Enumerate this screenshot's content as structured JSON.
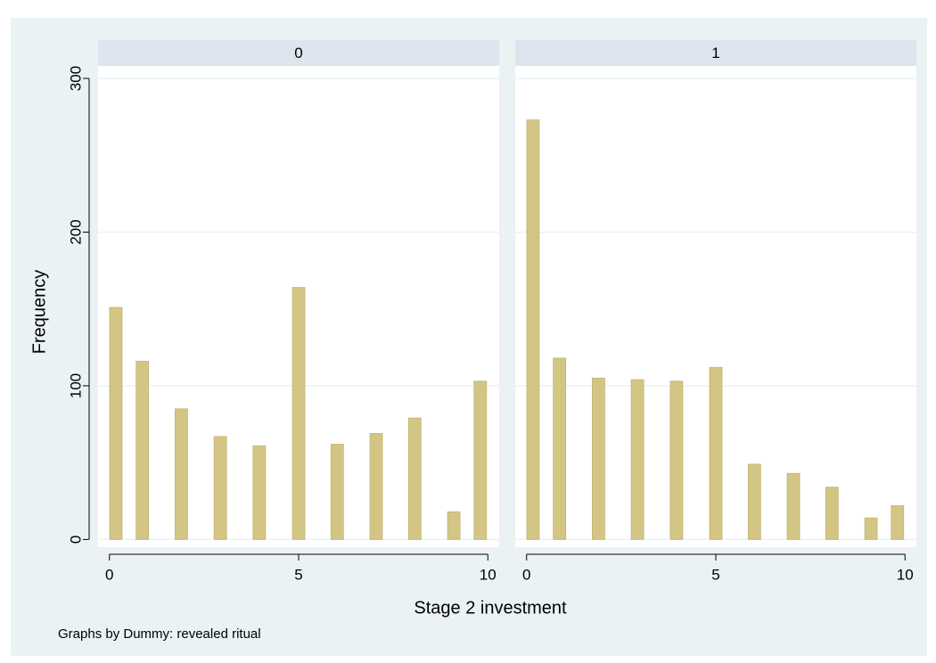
{
  "figure": {
    "ylabel": "Frequency",
    "xlabel": "Stage 2 investment",
    "note": "Graphs by Dummy: revealed ritual"
  },
  "chart_data": [
    {
      "type": "bar",
      "title": "0",
      "color": "#d3c584",
      "x": [
        0.17,
        0.87,
        1.9,
        2.93,
        3.96,
        5,
        6.02,
        7.05,
        8.07,
        9.1,
        9.8
      ],
      "values": [
        151,
        116,
        85,
        67,
        61,
        164,
        62,
        69,
        79,
        18,
        103
      ],
      "xlim": [
        -0.3,
        10.3
      ],
      "xticks": [
        0,
        5,
        10
      ],
      "ylim": [
        -5,
        300
      ],
      "yticks": [
        0,
        100,
        200,
        300
      ],
      "grid": true,
      "ytick_labels": true
    },
    {
      "type": "bar",
      "title": "1",
      "color": "#d3c584",
      "x": [
        0.17,
        0.87,
        1.9,
        2.93,
        3.96,
        5,
        6.02,
        7.05,
        8.07,
        9.1,
        9.8
      ],
      "values": [
        273,
        118,
        105,
        104,
        103,
        112,
        49,
        43,
        34,
        14,
        22
      ],
      "xlim": [
        -0.3,
        10.3
      ],
      "xticks": [
        0,
        5,
        10
      ],
      "ylim": [
        -5,
        300
      ],
      "yticks": [
        0,
        100,
        200,
        300
      ],
      "grid": true,
      "ytick_labels": false
    }
  ]
}
